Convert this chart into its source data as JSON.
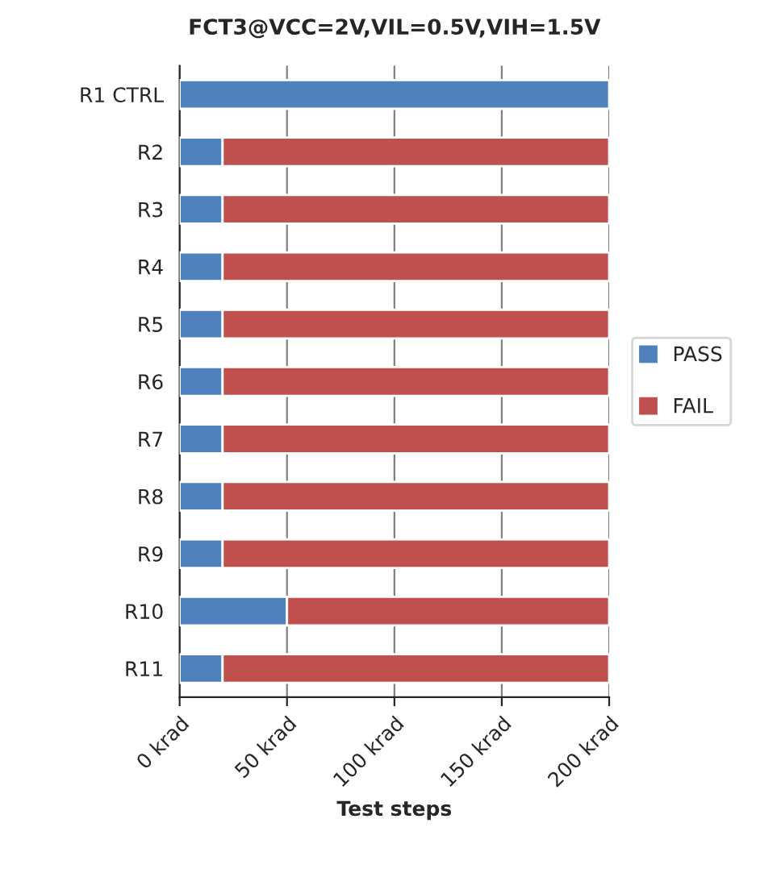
{
  "chart_data": {
    "type": "bar",
    "orientation": "horizontal",
    "stacked": true,
    "title": "FCT3@VCC=2V,VIL=0.5V,VIH=1.5V",
    "xlabel": "Test steps",
    "categories": [
      "R1 CTRL",
      "R2",
      "R3",
      "R4",
      "R5",
      "R6",
      "R7",
      "R8",
      "R9",
      "R10",
      "R11"
    ],
    "series": [
      {
        "name": "PASS",
        "color": "#4f81bd",
        "values": [
          200,
          20,
          20,
          20,
          20,
          20,
          20,
          20,
          20,
          50,
          20
        ]
      },
      {
        "name": "FAIL",
        "color": "#c0504d",
        "values": [
          null,
          180,
          180,
          180,
          180,
          180,
          180,
          180,
          180,
          150,
          180
        ]
      }
    ],
    "xlim": [
      0,
      200
    ],
    "xticks": [
      {
        "value": 0,
        "label": "0 krad"
      },
      {
        "value": 50,
        "label": "50 krad"
      },
      {
        "value": 100,
        "label": "100 krad"
      },
      {
        "value": 150,
        "label": "150 krad"
      },
      {
        "value": 200,
        "label": "200 krad"
      }
    ],
    "grid": "x",
    "legend": "right"
  }
}
